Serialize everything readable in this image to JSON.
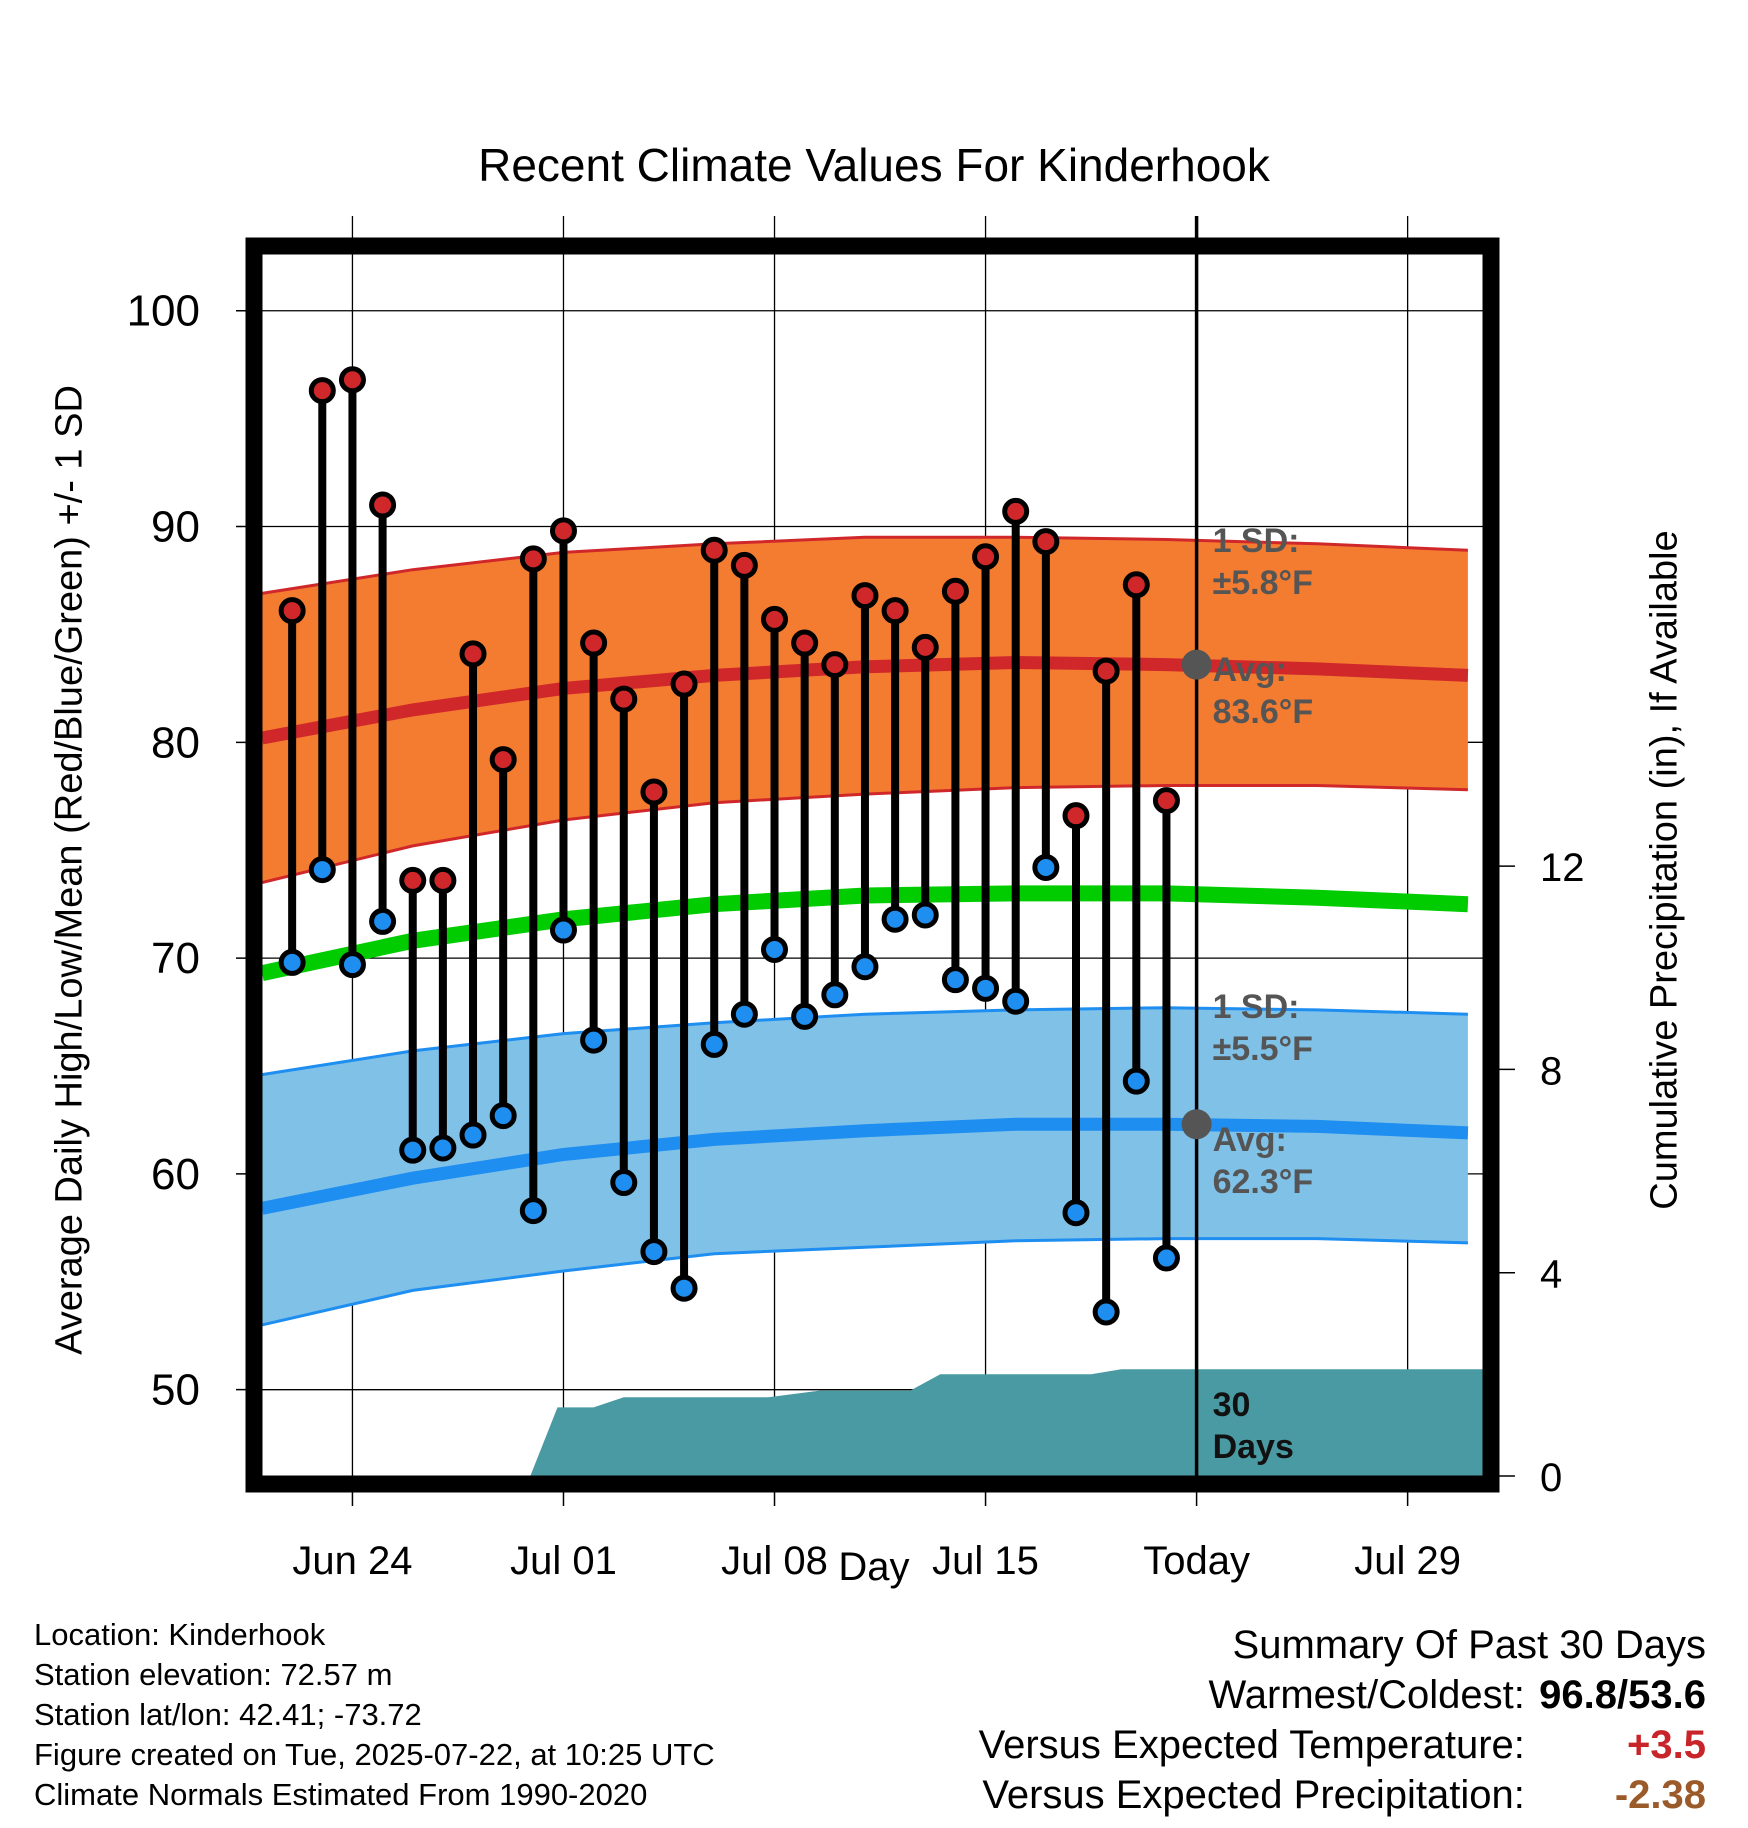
{
  "title": "Recent Climate Values For Kinderhook",
  "xlabel": "Day",
  "ylabel_left": "Average Daily High/Low/Mean (Red/Blue/Green) +/- 1 SD",
  "ylabel_right": "Cumulative Precipitation (in), If Available",
  "colors": {
    "high_band": "#f47c30",
    "high_mean": "#d0282a",
    "low_band": "#80c1e8",
    "low_mean": "#1e8ef0",
    "mean": "#00cc00",
    "precip": "#4a9aa3",
    "high_marker": "#d0282a",
    "low_marker": "#1e8ef0",
    "avg_marker": "#555555",
    "annotation_text": "#555555"
  },
  "annotations": {
    "high_sd_line1": "1 SD:",
    "high_sd_line2": "±5.8°F",
    "high_avg_line1": "Avg:",
    "high_avg_line2": "83.6°F",
    "low_sd_line1": "1 SD:",
    "low_sd_line2": "±5.5°F",
    "low_avg_line1": "Avg:",
    "low_avg_line2": "62.3°F",
    "precip_line1": "30",
    "precip_line2": "Days"
  },
  "meta": {
    "location": "Location: Kinderhook",
    "elevation": "Station elevation: 72.57 m",
    "latlon": "Station lat/lon: 42.41; -73.72",
    "created": "Figure created on Tue, 2025-07-22, at 10:25 UTC",
    "normals": "Climate Normals Estimated From 1990-2020"
  },
  "summary": {
    "heading": "Summary Of Past 30 Days",
    "warm_cold_label": "Warmest/Coldest:",
    "warm_cold_value": "96.8/53.6",
    "temp_label": "Versus Expected Temperature:",
    "temp_value": "+3.5",
    "precip_label": "Versus Expected Precipitation:",
    "precip_value": "-2.38"
  },
  "chart_data": {
    "type": "line",
    "x_days_label": "days, Jun 21 = 0",
    "xticks": [
      {
        "day": 3,
        "label": "Jun 24"
      },
      {
        "day": 10,
        "label": "Jul 01"
      },
      {
        "day": 17,
        "label": "Jul 08"
      },
      {
        "day": 24,
        "label": "Jul 15"
      },
      {
        "day": 31,
        "label": "Today"
      },
      {
        "day": 38,
        "label": "Jul 29"
      }
    ],
    "xlim": [
      0,
      40.5
    ],
    "ylim_temp": [
      46,
      103
    ],
    "yticks_temp": [
      50,
      60,
      70,
      80,
      90,
      100
    ],
    "ylim_precip": [
      0,
      24.2
    ],
    "yticks_precip": [
      0,
      4,
      8,
      12
    ],
    "today_day": 31,
    "observed": [
      {
        "day": 1,
        "high": 86.1,
        "low": 69.8
      },
      {
        "day": 2,
        "high": 96.3,
        "low": 74.1
      },
      {
        "day": 3,
        "high": 96.8,
        "low": 69.7
      },
      {
        "day": 4,
        "high": 91.0,
        "low": 71.7
      },
      {
        "day": 5,
        "high": 73.6,
        "low": 61.1
      },
      {
        "day": 6,
        "high": 73.6,
        "low": 61.2
      },
      {
        "day": 7,
        "high": 84.1,
        "low": 61.8
      },
      {
        "day": 8,
        "high": 79.2,
        "low": 62.7
      },
      {
        "day": 9,
        "high": 88.5,
        "low": 58.3
      },
      {
        "day": 10,
        "high": 89.8,
        "low": 71.3
      },
      {
        "day": 11,
        "high": 84.6,
        "low": 66.2
      },
      {
        "day": 12,
        "high": 82.0,
        "low": 59.6
      },
      {
        "day": 13,
        "high": 77.7,
        "low": 56.4
      },
      {
        "day": 14,
        "high": 82.7,
        "low": 54.7
      },
      {
        "day": 15,
        "high": 88.9,
        "low": 66.0
      },
      {
        "day": 16,
        "high": 88.2,
        "low": 67.4
      },
      {
        "day": 17,
        "high": 85.7,
        "low": 70.4
      },
      {
        "day": 18,
        "high": 84.6,
        "low": 67.3
      },
      {
        "day": 19,
        "high": 83.6,
        "low": 68.3
      },
      {
        "day": 20,
        "high": 86.8,
        "low": 69.6
      },
      {
        "day": 21,
        "high": 86.1,
        "low": 71.8
      },
      {
        "day": 22,
        "high": 84.4,
        "low": 72.0
      },
      {
        "day": 23,
        "high": 87.0,
        "low": 69.0
      },
      {
        "day": 24,
        "high": 88.6,
        "low": 68.6
      },
      {
        "day": 25,
        "high": 90.7,
        "low": 68.0
      },
      {
        "day": 26,
        "high": 89.3,
        "low": 74.2
      },
      {
        "day": 27,
        "high": 76.6,
        "low": 58.2
      },
      {
        "day": 28,
        "high": 83.3,
        "low": 53.6
      },
      {
        "day": 29,
        "high": 87.3,
        "low": 64.3
      },
      {
        "day": 30,
        "high": 77.3,
        "low": 56.1
      }
    ],
    "normals": {
      "day": [
        0,
        5,
        10,
        15,
        20,
        25,
        30,
        35,
        40
      ],
      "high_mean": [
        80.2,
        81.5,
        82.5,
        83.1,
        83.5,
        83.7,
        83.6,
        83.4,
        83.1
      ],
      "high_sd_upper": [
        86.9,
        88.0,
        88.8,
        89.2,
        89.5,
        89.5,
        89.4,
        89.2,
        88.9
      ],
      "high_sd_lower": [
        73.5,
        75.2,
        76.4,
        77.2,
        77.6,
        77.9,
        78.0,
        78.0,
        77.8
      ],
      "mean": [
        69.3,
        70.8,
        71.8,
        72.5,
        72.9,
        73.0,
        73.0,
        72.8,
        72.5
      ],
      "low_mean": [
        58.4,
        59.8,
        60.9,
        61.6,
        62.0,
        62.3,
        62.3,
        62.2,
        61.9
      ],
      "low_sd_upper": [
        64.6,
        65.7,
        66.5,
        67.0,
        67.4,
        67.6,
        67.7,
        67.6,
        67.4
      ],
      "low_sd_lower": [
        53.0,
        54.6,
        55.5,
        56.3,
        56.6,
        56.9,
        57.0,
        57.0,
        56.8
      ]
    },
    "precip_cumulative": [
      {
        "day": 0,
        "value": 0
      },
      {
        "day": 8.9,
        "value": 0
      },
      {
        "day": 9.8,
        "value": 1.35
      },
      {
        "day": 11,
        "value": 1.35
      },
      {
        "day": 12,
        "value": 1.55
      },
      {
        "day": 16.8,
        "value": 1.55
      },
      {
        "day": 18.5,
        "value": 1.68
      },
      {
        "day": 21.5,
        "value": 1.68
      },
      {
        "day": 22.5,
        "value": 2.0
      },
      {
        "day": 27.5,
        "value": 2.0
      },
      {
        "day": 28.5,
        "value": 2.1
      },
      {
        "day": 40.5,
        "value": 2.1
      }
    ]
  }
}
